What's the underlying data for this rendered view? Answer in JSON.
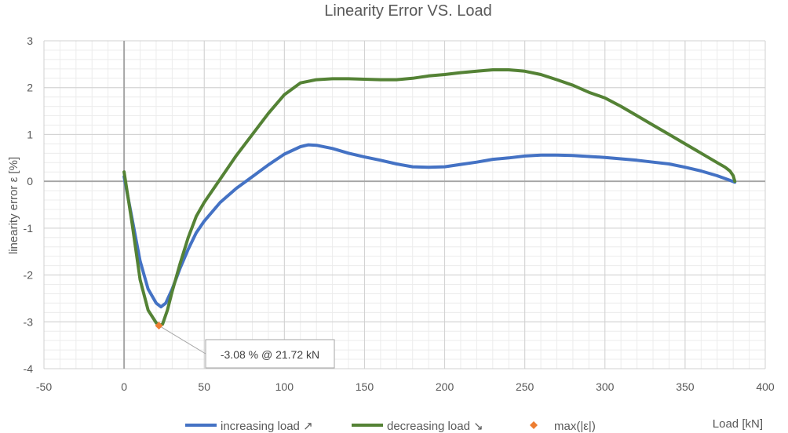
{
  "chart_data": {
    "type": "line",
    "title": "Linearity Error VS. Load",
    "xlabel": "Load [kN]",
    "ylabel": "linearity error ε [%]",
    "xlim": [
      -50,
      400
    ],
    "ylim": [
      -4,
      3
    ],
    "x_ticks": [
      -50,
      0,
      50,
      100,
      150,
      200,
      250,
      300,
      350,
      400
    ],
    "y_ticks": [
      -4,
      -3,
      -2,
      -1,
      0,
      1,
      2,
      3
    ],
    "x_tick_labels": [
      "-50",
      "0",
      "50",
      "100",
      "150",
      "200",
      "250",
      "300",
      "350",
      "400"
    ],
    "y_tick_labels": [
      "-4",
      "-3",
      "-2",
      "-1",
      "0",
      "1",
      "2",
      "3"
    ],
    "grid": true,
    "minor_grid": true,
    "legend_position": "bottom",
    "series": [
      {
        "name": "increasing load ↗",
        "color": "#4472C4",
        "x": [
          0,
          5,
          10,
          15,
          20,
          23,
          26,
          30,
          35,
          40,
          45,
          50,
          60,
          70,
          80,
          90,
          100,
          110,
          115,
          120,
          130,
          140,
          150,
          160,
          170,
          180,
          190,
          200,
          210,
          220,
          230,
          240,
          250,
          260,
          270,
          280,
          290,
          300,
          310,
          320,
          330,
          340,
          350,
          360,
          370,
          378,
          381
        ],
        "y": [
          0.1,
          -0.8,
          -1.7,
          -2.3,
          -2.6,
          -2.68,
          -2.6,
          -2.3,
          -1.85,
          -1.45,
          -1.1,
          -0.85,
          -0.45,
          -0.15,
          0.1,
          0.35,
          0.58,
          0.74,
          0.78,
          0.77,
          0.7,
          0.6,
          0.52,
          0.45,
          0.37,
          0.31,
          0.3,
          0.31,
          0.36,
          0.41,
          0.47,
          0.5,
          0.54,
          0.56,
          0.56,
          0.55,
          0.53,
          0.51,
          0.48,
          0.45,
          0.41,
          0.37,
          0.3,
          0.22,
          0.12,
          0.02,
          -0.02
        ]
      },
      {
        "name": "decreasing load ↘",
        "color": "#548235",
        "x": [
          0,
          5,
          10,
          15,
          20,
          21.72,
          24,
          27,
          30,
          35,
          40,
          45,
          50,
          60,
          70,
          80,
          90,
          100,
          110,
          120,
          130,
          140,
          150,
          160,
          170,
          180,
          190,
          200,
          210,
          220,
          230,
          240,
          250,
          260,
          270,
          280,
          290,
          300,
          310,
          320,
          330,
          340,
          350,
          360,
          370,
          375,
          378,
          380,
          381
        ],
        "y": [
          0.2,
          -0.9,
          -2.1,
          -2.75,
          -3.02,
          -3.08,
          -3.05,
          -2.75,
          -2.35,
          -1.75,
          -1.2,
          -0.75,
          -0.45,
          0.05,
          0.55,
          1.0,
          1.45,
          1.85,
          2.1,
          2.17,
          2.19,
          2.19,
          2.18,
          2.17,
          2.17,
          2.2,
          2.25,
          2.28,
          2.32,
          2.35,
          2.38,
          2.38,
          2.35,
          2.28,
          2.17,
          2.05,
          1.9,
          1.78,
          1.6,
          1.4,
          1.2,
          1.0,
          0.8,
          0.6,
          0.4,
          0.3,
          0.22,
          0.12,
          0.0
        ]
      },
      {
        "name": "max(|ε|)",
        "color": "#ED7D31",
        "marker": "diamond",
        "x": [
          21.72
        ],
        "y": [
          -3.08
        ]
      }
    ],
    "annotations": [
      {
        "text": "-3.08 % @ 21.72 kN",
        "x": 21.72,
        "y": -3.08
      }
    ]
  }
}
